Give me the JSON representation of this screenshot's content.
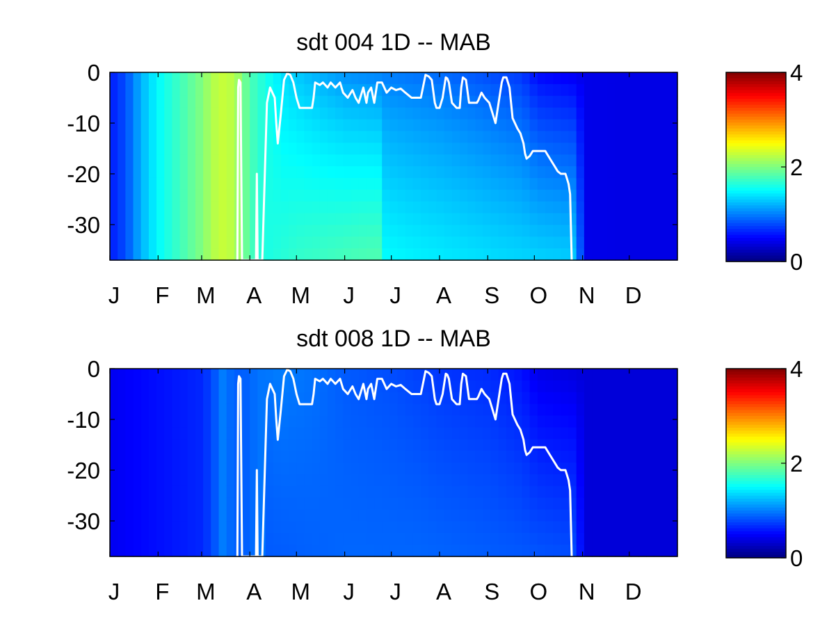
{
  "chart_data": [
    {
      "type": "heatmap",
      "title": "sdt  004 1D   -- MAB",
      "xlabel": "",
      "ylabel": "",
      "x_tick_labels": [
        "J",
        "F",
        "M",
        "A",
        "M",
        "J",
        "J",
        "A",
        "S",
        "O",
        "N",
        "D"
      ],
      "xlim": [
        0,
        365
      ],
      "ylim": [
        -37,
        0
      ],
      "y_ticks": [
        0,
        -10,
        -20,
        -30
      ],
      "y_tick_labels": [
        "0",
        "-10",
        "-20",
        "-30"
      ],
      "color_scale": {
        "colormap": "jet",
        "range": [
          0,
          4
        ],
        "ticks": [
          0,
          2,
          4
        ],
        "tick_labels": [
          "0",
          "2",
          "4"
        ]
      },
      "surface_values": [
        {
          "day": 0,
          "v": 0.6
        },
        {
          "day": 10,
          "v": 0.8
        },
        {
          "day": 20,
          "v": 1.2
        },
        {
          "day": 31,
          "v": 1.5
        },
        {
          "day": 45,
          "v": 1.75
        },
        {
          "day": 59,
          "v": 2.0
        },
        {
          "day": 66,
          "v": 2.2
        },
        {
          "day": 75,
          "v": 2.3
        },
        {
          "day": 83,
          "v": 2.1
        },
        {
          "day": 90,
          "v": 1.8
        },
        {
          "day": 100,
          "v": 1.6
        },
        {
          "day": 112,
          "v": 1.35
        },
        {
          "day": 130,
          "v": 1.2
        },
        {
          "day": 152,
          "v": 1.05
        },
        {
          "day": 170,
          "v": 1.0
        },
        {
          "day": 190,
          "v": 0.95
        },
        {
          "day": 213,
          "v": 0.9
        },
        {
          "day": 240,
          "v": 0.8
        },
        {
          "day": 265,
          "v": 0.7
        },
        {
          "day": 275,
          "v": 0.5
        },
        {
          "day": 300,
          "v": 0.42
        },
        {
          "day": 330,
          "v": 0.4
        },
        {
          "day": 365,
          "v": 0.4
        }
      ],
      "bottom_values": [
        {
          "day": 100,
          "v": 1.6
        },
        {
          "day": 120,
          "v": 1.7
        },
        {
          "day": 140,
          "v": 1.75
        },
        {
          "day": 160,
          "v": 1.8
        },
        {
          "day": 175,
          "v": 1.82
        },
        {
          "day": 176,
          "v": 1.5
        },
        {
          "day": 200,
          "v": 1.45
        },
        {
          "day": 230,
          "v": 1.4
        },
        {
          "day": 260,
          "v": 1.35
        },
        {
          "day": 300,
          "v": 1.3
        },
        {
          "day": 305,
          "v": 0.4
        }
      ],
      "overlay_line": {
        "color": "#ffffff",
        "points": [
          [
            82,
            -37
          ],
          [
            82.5,
            -3
          ],
          [
            83,
            -1.5
          ],
          [
            84,
            -2
          ],
          [
            85,
            -37
          ],
          [
            94,
            -37
          ],
          [
            94.5,
            -20
          ],
          [
            95,
            -37
          ],
          [
            98,
            -37
          ],
          [
            101,
            -6
          ],
          [
            103,
            -3
          ],
          [
            106,
            -5
          ],
          [
            107,
            -10
          ],
          [
            108,
            -14
          ],
          [
            110,
            -8
          ],
          [
            112,
            -1.5
          ],
          [
            114,
            -0.2
          ],
          [
            116,
            -0.5
          ],
          [
            118,
            -2
          ],
          [
            120,
            -5
          ],
          [
            122,
            -7
          ],
          [
            130,
            -7
          ],
          [
            131,
            -5
          ],
          [
            132,
            -2
          ],
          [
            135,
            -2.5
          ],
          [
            137,
            -2
          ],
          [
            140,
            -3
          ],
          [
            142,
            -2
          ],
          [
            145,
            -3
          ],
          [
            148,
            -2
          ],
          [
            150,
            -4
          ],
          [
            153,
            -5
          ],
          [
            156,
            -3.5
          ],
          [
            158,
            -5
          ],
          [
            160,
            -6
          ],
          [
            163,
            -3
          ],
          [
            165,
            -6
          ],
          [
            166,
            -4
          ],
          [
            168,
            -3
          ],
          [
            170,
            -6
          ],
          [
            172,
            -2
          ],
          [
            175,
            -2
          ],
          [
            178,
            -4
          ],
          [
            181,
            -3
          ],
          [
            184,
            -3.5
          ],
          [
            187,
            -3.2
          ],
          [
            190,
            -4
          ],
          [
            194,
            -5
          ],
          [
            200,
            -5
          ],
          [
            202,
            -2
          ],
          [
            203,
            -0.5
          ],
          [
            205,
            -0.8
          ],
          [
            207,
            -1.5
          ],
          [
            209,
            -6
          ],
          [
            210,
            -7
          ],
          [
            212,
            -7
          ],
          [
            214,
            -5
          ],
          [
            216,
            -1
          ],
          [
            217,
            -1.2
          ],
          [
            218,
            -2
          ],
          [
            220,
            -6
          ],
          [
            223,
            -7
          ],
          [
            225,
            -7
          ],
          [
            226,
            -3
          ],
          [
            227,
            -1
          ],
          [
            229,
            -1.5
          ],
          [
            231,
            -6
          ],
          [
            236,
            -6
          ],
          [
            237,
            -5.5
          ],
          [
            239,
            -4
          ],
          [
            241,
            -5
          ],
          [
            244,
            -6
          ],
          [
            246,
            -8
          ],
          [
            248,
            -10
          ],
          [
            250,
            -6
          ],
          [
            252,
            -2
          ],
          [
            253,
            -1
          ],
          [
            255,
            -1
          ],
          [
            257,
            -3
          ],
          [
            259,
            -9
          ],
          [
            262,
            -11
          ],
          [
            264,
            -12
          ],
          [
            266,
            -14
          ],
          [
            267,
            -16
          ],
          [
            268,
            -17
          ],
          [
            270,
            -16.5
          ],
          [
            272,
            -15.5
          ],
          [
            280,
            -15.5
          ],
          [
            283,
            -17
          ],
          [
            285,
            -18
          ],
          [
            288,
            -19.5
          ],
          [
            290,
            -20
          ],
          [
            293,
            -20
          ],
          [
            294,
            -21
          ],
          [
            295,
            -22
          ],
          [
            296,
            -24
          ],
          [
            297,
            -37
          ]
        ]
      }
    },
    {
      "type": "heatmap",
      "title": "sdt  008 1D   -- MAB",
      "xlabel": "",
      "ylabel": "",
      "x_tick_labels": [
        "J",
        "F",
        "M",
        "A",
        "M",
        "J",
        "J",
        "A",
        "S",
        "O",
        "N",
        "D"
      ],
      "xlim": [
        0,
        365
      ],
      "ylim": [
        -37,
        0
      ],
      "y_ticks": [
        0,
        -10,
        -20,
        -30
      ],
      "y_tick_labels": [
        "0",
        "-10",
        "-20",
        "-30"
      ],
      "color_scale": {
        "colormap": "jet",
        "range": [
          0,
          4
        ],
        "ticks": [
          0,
          2,
          4
        ],
        "tick_labels": [
          "0",
          "2",
          "4"
        ]
      },
      "surface_values": [
        {
          "day": 0,
          "v": 0.45
        },
        {
          "day": 31,
          "v": 0.55
        },
        {
          "day": 60,
          "v": 0.65
        },
        {
          "day": 68,
          "v": 0.85
        },
        {
          "day": 73,
          "v": 1.0
        },
        {
          "day": 78,
          "v": 0.9
        },
        {
          "day": 85,
          "v": 0.85
        },
        {
          "day": 95,
          "v": 0.95
        },
        {
          "day": 110,
          "v": 1.0
        },
        {
          "day": 130,
          "v": 0.95
        },
        {
          "day": 152,
          "v": 0.85
        },
        {
          "day": 180,
          "v": 0.8
        },
        {
          "day": 213,
          "v": 0.7
        },
        {
          "day": 245,
          "v": 0.65
        },
        {
          "day": 265,
          "v": 0.55
        },
        {
          "day": 275,
          "v": 0.4
        },
        {
          "day": 300,
          "v": 0.35
        },
        {
          "day": 365,
          "v": 0.35
        }
      ],
      "bottom_values": [
        {
          "day": 100,
          "v": 0.85
        },
        {
          "day": 150,
          "v": 0.9
        },
        {
          "day": 200,
          "v": 0.9
        },
        {
          "day": 260,
          "v": 0.85
        },
        {
          "day": 300,
          "v": 0.8
        },
        {
          "day": 305,
          "v": 0.35
        }
      ],
      "overlay_line": {
        "color": "#ffffff",
        "points": [
          [
            82,
            -37
          ],
          [
            82.5,
            -3
          ],
          [
            83,
            -1.5
          ],
          [
            84,
            -2
          ],
          [
            85,
            -37
          ],
          [
            94,
            -37
          ],
          [
            94.5,
            -20
          ],
          [
            95,
            -37
          ],
          [
            98,
            -37
          ],
          [
            101,
            -6
          ],
          [
            103,
            -3
          ],
          [
            106,
            -5
          ],
          [
            107,
            -10
          ],
          [
            108,
            -14
          ],
          [
            110,
            -8
          ],
          [
            112,
            -1.5
          ],
          [
            114,
            -0.2
          ],
          [
            116,
            -0.5
          ],
          [
            118,
            -2
          ],
          [
            120,
            -5
          ],
          [
            122,
            -7
          ],
          [
            130,
            -7
          ],
          [
            131,
            -5
          ],
          [
            132,
            -2
          ],
          [
            135,
            -2.5
          ],
          [
            137,
            -2
          ],
          [
            140,
            -3
          ],
          [
            142,
            -2
          ],
          [
            145,
            -3
          ],
          [
            148,
            -2
          ],
          [
            150,
            -4
          ],
          [
            153,
            -5
          ],
          [
            156,
            -3.5
          ],
          [
            158,
            -5
          ],
          [
            160,
            -6
          ],
          [
            163,
            -3
          ],
          [
            165,
            -6
          ],
          [
            166,
            -4
          ],
          [
            168,
            -3
          ],
          [
            170,
            -6
          ],
          [
            172,
            -2
          ],
          [
            175,
            -2
          ],
          [
            178,
            -4
          ],
          [
            181,
            -3
          ],
          [
            184,
            -3.5
          ],
          [
            187,
            -3.2
          ],
          [
            190,
            -4
          ],
          [
            194,
            -5
          ],
          [
            200,
            -5
          ],
          [
            202,
            -2
          ],
          [
            203,
            -0.5
          ],
          [
            205,
            -0.8
          ],
          [
            207,
            -1.5
          ],
          [
            209,
            -6
          ],
          [
            210,
            -7
          ],
          [
            212,
            -7
          ],
          [
            214,
            -5
          ],
          [
            216,
            -1
          ],
          [
            217,
            -1.2
          ],
          [
            218,
            -2
          ],
          [
            220,
            -6
          ],
          [
            223,
            -7
          ],
          [
            225,
            -7
          ],
          [
            226,
            -3
          ],
          [
            227,
            -1
          ],
          [
            229,
            -1.5
          ],
          [
            231,
            -6
          ],
          [
            236,
            -6
          ],
          [
            237,
            -5.5
          ],
          [
            239,
            -4
          ],
          [
            241,
            -5
          ],
          [
            244,
            -6
          ],
          [
            246,
            -8
          ],
          [
            248,
            -10
          ],
          [
            250,
            -6
          ],
          [
            252,
            -2
          ],
          [
            253,
            -1
          ],
          [
            255,
            -1
          ],
          [
            257,
            -3
          ],
          [
            259,
            -9
          ],
          [
            262,
            -11
          ],
          [
            264,
            -12
          ],
          [
            266,
            -14
          ],
          [
            267,
            -16
          ],
          [
            268,
            -17
          ],
          [
            270,
            -16.5
          ],
          [
            272,
            -15.5
          ],
          [
            280,
            -15.5
          ],
          [
            283,
            -17
          ],
          [
            285,
            -18
          ],
          [
            288,
            -19.5
          ],
          [
            290,
            -20
          ],
          [
            293,
            -20
          ],
          [
            294,
            -21
          ],
          [
            295,
            -22
          ],
          [
            296,
            -24
          ],
          [
            297,
            -37
          ]
        ]
      }
    }
  ]
}
